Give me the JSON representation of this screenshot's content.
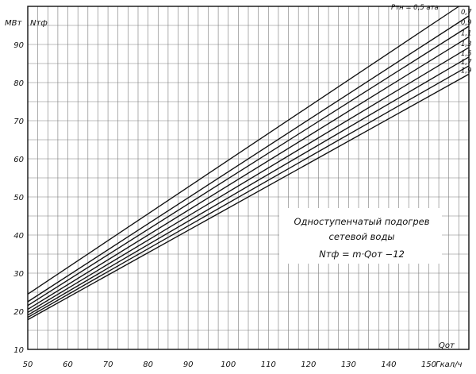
{
  "chart_data": {
    "type": "line",
    "title": "",
    "xlabel": "Qот",
    "xunit": "Гкал/ч",
    "ylabel": "Nтф",
    "yunit": "МВт",
    "xlim": [
      50,
      160
    ],
    "ylim": [
      10,
      100
    ],
    "x_ticks": [
      50,
      60,
      70,
      80,
      90,
      100,
      110,
      120,
      130,
      140,
      150
    ],
    "y_ticks": [
      10,
      20,
      30,
      40,
      50,
      60,
      70,
      80,
      90
    ],
    "grid": true,
    "series_label_prefix": "Pтн = 0,5 ата",
    "series": [
      {
        "name": "0,5",
        "points": [
          [
            50,
            24.5
          ],
          [
            157.5,
            100
          ]
        ]
      },
      {
        "name": "0,7",
        "points": [
          [
            50,
            22.5
          ],
          [
            160,
            97.5
          ]
        ]
      },
      {
        "name": "0,9",
        "points": [
          [
            50,
            21.5
          ],
          [
            160,
            94.8
          ]
        ]
      },
      {
        "name": "1,1",
        "points": [
          [
            50,
            20.5
          ],
          [
            160,
            92.0
          ]
        ]
      },
      {
        "name": "1,3",
        "points": [
          [
            50,
            19.7
          ],
          [
            160,
            89.2
          ]
        ]
      },
      {
        "name": "1,5",
        "points": [
          [
            50,
            19.0
          ],
          [
            160,
            86.7
          ]
        ]
      },
      {
        "name": "1,7",
        "points": [
          [
            50,
            18.4
          ],
          [
            160,
            84.4
          ]
        ]
      },
      {
        "name": "1,9",
        "points": [
          [
            50,
            17.8
          ],
          [
            160,
            82.2
          ]
        ]
      }
    ],
    "annotation": {
      "line1": "Одноступенчатый подогрев",
      "line2": "сетевой воды",
      "line3": "Nтф = m·Qот −12"
    }
  }
}
